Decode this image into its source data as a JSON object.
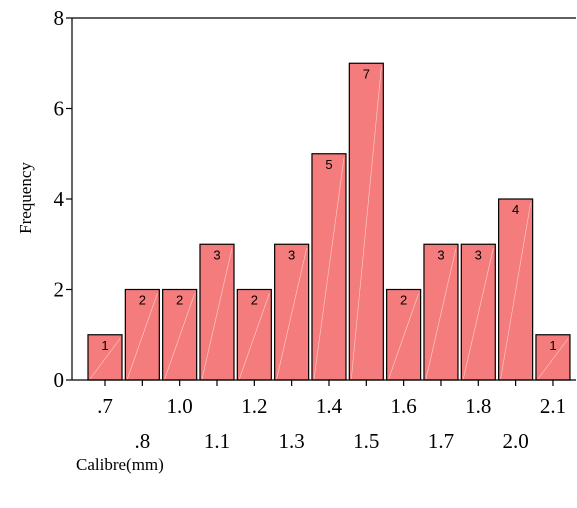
{
  "chart_data": {
    "type": "bar",
    "categories": [
      ".7",
      ".8",
      "1.0",
      "1.1",
      "1.2",
      "1.3",
      "1.4",
      "1.5",
      "1.6",
      "1.7",
      "1.8",
      "2.0",
      "2.1"
    ],
    "values": [
      1,
      2,
      2,
      3,
      2,
      3,
      5,
      7,
      2,
      3,
      3,
      4,
      1
    ],
    "data_labels": [
      "1",
      "2",
      "2",
      "3",
      "2",
      "3",
      "5",
      "7",
      "2",
      "3",
      "3",
      "4",
      "1"
    ],
    "title": "",
    "xlabel": "Calibre(mm)",
    "ylabel": "Frequency",
    "ylim": [
      0,
      8
    ],
    "yticks": [
      "0",
      "2",
      "4",
      "6",
      "8"
    ],
    "grid": false,
    "legend": "none",
    "colors": {
      "bar_fill": "#f47c7c",
      "bar_edge": "#000000"
    }
  }
}
